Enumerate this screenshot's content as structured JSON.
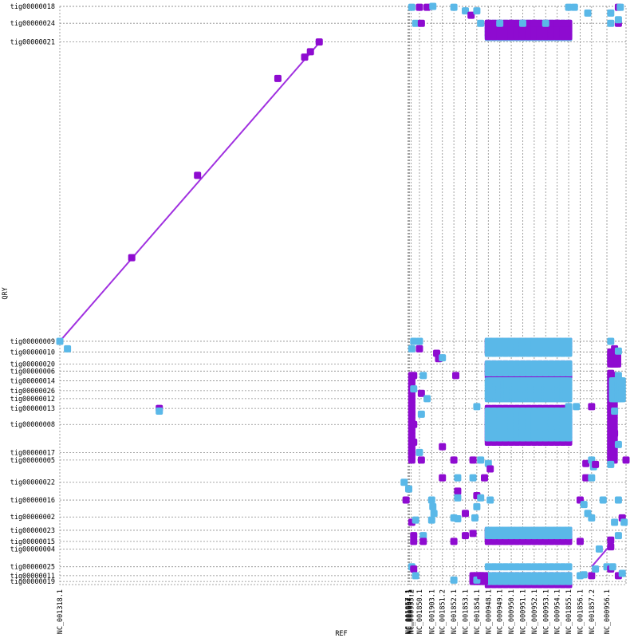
{
  "chart_data": {
    "type": "scatter",
    "title": "",
    "xlabel": "REF",
    "ylabel": "QRY",
    "colors": {
      "forward": "#8e0bd0",
      "reverse": "#5ab8e8",
      "diagonal": "#a030e0"
    },
    "ref_contigs": [
      {
        "name": "NC_001318.1",
        "start": 0,
        "end": 910
      },
      {
        "name": "NC_001857.1",
        "start": 910,
        "end": 912
      },
      {
        "name": "NC_001904.1",
        "start": 912,
        "end": 914
      },
      {
        "name": "NC_000957.1",
        "start": 914,
        "end": 918
      },
      {
        "name": "NC_000955.2",
        "start": 918,
        "end": 940
      },
      {
        "name": "NC_001850.1",
        "start": 940,
        "end": 972
      },
      {
        "name": "NC_001903.1",
        "start": 972,
        "end": 1000
      },
      {
        "name": "NC_001851.2",
        "start": 1000,
        "end": 1030
      },
      {
        "name": "NC_001852.1",
        "start": 1030,
        "end": 1060
      },
      {
        "name": "NC_001853.1",
        "start": 1060,
        "end": 1090
      },
      {
        "name": "NC_001854.1",
        "start": 1090,
        "end": 1120
      },
      {
        "name": "NC_000948.1",
        "start": 1120,
        "end": 1150
      },
      {
        "name": "NC_000949.1",
        "start": 1150,
        "end": 1180
      },
      {
        "name": "NC_000950.1",
        "start": 1180,
        "end": 1210
      },
      {
        "name": "NC_000951.1",
        "start": 1210,
        "end": 1240
      },
      {
        "name": "NC_000952.1",
        "start": 1240,
        "end": 1270
      },
      {
        "name": "NC_000953.1",
        "start": 1270,
        "end": 1300
      },
      {
        "name": "NC_000954.1",
        "start": 1300,
        "end": 1330
      },
      {
        "name": "NC_001855.1",
        "start": 1330,
        "end": 1360
      },
      {
        "name": "NC_001856.1",
        "start": 1360,
        "end": 1390
      },
      {
        "name": "NC_001857.2",
        "start": 1390,
        "end": 1430
      },
      {
        "name": "NC_000956.1",
        "start": 1430,
        "end": 1480
      }
    ],
    "qry_contigs": [
      {
        "name": "tig00000019",
        "start": 0,
        "end": 7
      },
      {
        "name": "tig00000011",
        "start": 7,
        "end": 20
      },
      {
        "name": "tig00000025",
        "start": 20,
        "end": 40
      },
      {
        "name": "tig00000004",
        "start": 40,
        "end": 80
      },
      {
        "name": "tig00000015",
        "start": 80,
        "end": 97
      },
      {
        "name": "tig00000023",
        "start": 97,
        "end": 122
      },
      {
        "name": "tig00000002",
        "start": 122,
        "end": 152
      },
      {
        "name": "tig00000016",
        "start": 152,
        "end": 190
      },
      {
        "name": "tig00000022",
        "start": 190,
        "end": 230
      },
      {
        "name": "tig00000005",
        "start": 230,
        "end": 280
      },
      {
        "name": "tig00000017",
        "start": 280,
        "end": 297
      },
      {
        "name": "tig00000008",
        "start": 297,
        "end": 360
      },
      {
        "name": "tig00000013",
        "start": 360,
        "end": 396
      },
      {
        "name": "tig00000012",
        "start": 396,
        "end": 418
      },
      {
        "name": "tig00000026",
        "start": 418,
        "end": 436
      },
      {
        "name": "tig00000014",
        "start": 436,
        "end": 458
      },
      {
        "name": "tig00000006",
        "start": 458,
        "end": 480
      },
      {
        "name": "tig00000020",
        "start": 480,
        "end": 496
      },
      {
        "name": "tig00000010",
        "start": 496,
        "end": 523
      },
      {
        "name": "tig00000009",
        "start": 523,
        "end": 547
      },
      {
        "name": "tig00000021",
        "start": 547,
        "end": 1220
      },
      {
        "name": "tig00000024",
        "start": 1220,
        "end": 1262
      },
      {
        "name": "tig00000018",
        "start": 1262,
        "end": 1300
      }
    ],
    "diagonal": [
      {
        "x1": 0,
        "y1": 547,
        "x2": 680,
        "y2": 1220,
        "color": "#a030e0"
      },
      {
        "x1": 1390,
        "y1": 40,
        "x2": 1440,
        "y2": 90,
        "color": "#a030e0"
      }
    ],
    "points": [
      {
        "x": 0,
        "y": 547,
        "c": "r"
      },
      {
        "x": 20,
        "y": 530,
        "c": "r"
      },
      {
        "x": 188,
        "y": 735,
        "c": "f"
      },
      {
        "x": 360,
        "y": 920,
        "c": "f"
      },
      {
        "x": 570,
        "y": 1138,
        "c": "f"
      },
      {
        "x": 640,
        "y": 1186,
        "c": "f"
      },
      {
        "x": 655,
        "y": 1198,
        "c": "f"
      },
      {
        "x": 678,
        "y": 1220,
        "c": "f"
      },
      {
        "x": 260,
        "y": 396,
        "c": "f"
      },
      {
        "x": 260,
        "y": 390,
        "c": "r"
      },
      {
        "x": 920,
        "y": 1298,
        "c": "r"
      },
      {
        "x": 940,
        "y": 1298,
        "c": "f"
      },
      {
        "x": 960,
        "y": 1298,
        "c": "f"
      },
      {
        "x": 975,
        "y": 1300,
        "c": "r"
      },
      {
        "x": 1030,
        "y": 1298,
        "c": "r"
      },
      {
        "x": 1060,
        "y": 1290,
        "c": "r"
      },
      {
        "x": 1075,
        "y": 1280,
        "c": "f"
      },
      {
        "x": 1090,
        "y": 1290,
        "c": "r"
      },
      {
        "x": 1330,
        "y": 1298,
        "c": "r"
      },
      {
        "x": 1345,
        "y": 1298,
        "c": "r"
      },
      {
        "x": 1380,
        "y": 1285,
        "c": "r"
      },
      {
        "x": 1440,
        "y": 1285,
        "c": "r"
      },
      {
        "x": 1460,
        "y": 1298,
        "c": "f"
      },
      {
        "x": 1465,
        "y": 1298,
        "c": "r"
      },
      {
        "x": 930,
        "y": 1262,
        "c": "r"
      },
      {
        "x": 945,
        "y": 1262,
        "c": "f"
      },
      {
        "x": 1100,
        "y": 1262,
        "c": "r"
      },
      {
        "x": 1120,
        "y": 1262,
        "c": "f"
      },
      {
        "x": 1150,
        "y": 1262,
        "c": "r"
      },
      {
        "x": 1180,
        "y": 1262,
        "c": "f"
      },
      {
        "x": 1210,
        "y": 1262,
        "c": "r"
      },
      {
        "x": 1240,
        "y": 1262,
        "c": "f"
      },
      {
        "x": 1270,
        "y": 1262,
        "c": "r"
      },
      {
        "x": 1300,
        "y": 1262,
        "c": "f"
      },
      {
        "x": 1440,
        "y": 1262,
        "c": "r"
      },
      {
        "x": 1460,
        "y": 1262,
        "c": "f"
      },
      {
        "x": 1460,
        "y": 1270,
        "c": "r"
      },
      {
        "x": 925,
        "y": 547,
        "c": "r"
      },
      {
        "x": 940,
        "y": 547,
        "c": "r"
      },
      {
        "x": 920,
        "y": 530,
        "c": "r"
      },
      {
        "x": 940,
        "y": 530,
        "c": "f"
      },
      {
        "x": 985,
        "y": 520,
        "c": "f"
      },
      {
        "x": 990,
        "y": 508,
        "c": "f"
      },
      {
        "x": 1000,
        "y": 510,
        "c": "r"
      },
      {
        "x": 1440,
        "y": 547,
        "c": "r"
      },
      {
        "x": 1450,
        "y": 530,
        "c": "f"
      },
      {
        "x": 1460,
        "y": 525,
        "c": "r"
      },
      {
        "x": 925,
        "y": 470,
        "c": "f"
      },
      {
        "x": 950,
        "y": 470,
        "c": "r"
      },
      {
        "x": 1035,
        "y": 470,
        "c": "f"
      },
      {
        "x": 1440,
        "y": 475,
        "c": "f"
      },
      {
        "x": 1460,
        "y": 470,
        "c": "r"
      },
      {
        "x": 925,
        "y": 440,
        "c": "r"
      },
      {
        "x": 945,
        "y": 430,
        "c": "f"
      },
      {
        "x": 960,
        "y": 418,
        "c": "r"
      },
      {
        "x": 1090,
        "y": 400,
        "c": "r"
      },
      {
        "x": 1330,
        "y": 400,
        "c": "r"
      },
      {
        "x": 1350,
        "y": 400,
        "c": "r"
      },
      {
        "x": 1390,
        "y": 400,
        "c": "f"
      },
      {
        "x": 1440,
        "y": 396,
        "c": "f"
      },
      {
        "x": 1450,
        "y": 390,
        "c": "r"
      },
      {
        "x": 920,
        "y": 385,
        "c": "f"
      },
      {
        "x": 945,
        "y": 383,
        "c": "r"
      },
      {
        "x": 925,
        "y": 360,
        "c": "f"
      },
      {
        "x": 925,
        "y": 320,
        "c": "f"
      },
      {
        "x": 940,
        "y": 297,
        "c": "r"
      },
      {
        "x": 945,
        "y": 280,
        "c": "f"
      },
      {
        "x": 1450,
        "y": 340,
        "c": "f"
      },
      {
        "x": 1460,
        "y": 315,
        "c": "r"
      },
      {
        "x": 1000,
        "y": 310,
        "c": "f"
      },
      {
        "x": 1030,
        "y": 280,
        "c": "f"
      },
      {
        "x": 1080,
        "y": 280,
        "c": "f"
      },
      {
        "x": 1100,
        "y": 280,
        "c": "r"
      },
      {
        "x": 1120,
        "y": 272,
        "c": "r"
      },
      {
        "x": 1125,
        "y": 260,
        "c": "f"
      },
      {
        "x": 1375,
        "y": 272,
        "c": "f"
      },
      {
        "x": 1390,
        "y": 280,
        "c": "r"
      },
      {
        "x": 1395,
        "y": 265,
        "c": "r"
      },
      {
        "x": 1400,
        "y": 270,
        "c": "f"
      },
      {
        "x": 1440,
        "y": 270,
        "c": "r"
      },
      {
        "x": 1480,
        "y": 280,
        "c": "f"
      },
      {
        "x": 900,
        "y": 230,
        "c": "r"
      },
      {
        "x": 912,
        "y": 215,
        "c": "r"
      },
      {
        "x": 905,
        "y": 190,
        "c": "f"
      },
      {
        "x": 1000,
        "y": 240,
        "c": "f"
      },
      {
        "x": 1040,
        "y": 240,
        "c": "r"
      },
      {
        "x": 1080,
        "y": 240,
        "c": "r"
      },
      {
        "x": 1110,
        "y": 240,
        "c": "f"
      },
      {
        "x": 1375,
        "y": 240,
        "c": "f"
      },
      {
        "x": 1390,
        "y": 240,
        "c": "r"
      },
      {
        "x": 1040,
        "y": 210,
        "c": "f"
      },
      {
        "x": 1040,
        "y": 195,
        "c": "r"
      },
      {
        "x": 1090,
        "y": 200,
        "c": "f"
      },
      {
        "x": 1100,
        "y": 195,
        "c": "r"
      },
      {
        "x": 1125,
        "y": 190,
        "c": "r"
      },
      {
        "x": 1360,
        "y": 190,
        "c": "f"
      },
      {
        "x": 1370,
        "y": 180,
        "c": "r"
      },
      {
        "x": 1380,
        "y": 160,
        "c": "r"
      },
      {
        "x": 1390,
        "y": 150,
        "c": "r"
      },
      {
        "x": 1420,
        "y": 190,
        "c": "r"
      },
      {
        "x": 1460,
        "y": 190,
        "c": "r"
      },
      {
        "x": 972,
        "y": 190,
        "c": "r"
      },
      {
        "x": 975,
        "y": 175,
        "c": "r"
      },
      {
        "x": 978,
        "y": 160,
        "c": "r"
      },
      {
        "x": 972,
        "y": 145,
        "c": "r"
      },
      {
        "x": 1030,
        "y": 150,
        "c": "r"
      },
      {
        "x": 1040,
        "y": 148,
        "c": "r"
      },
      {
        "x": 1060,
        "y": 160,
        "c": "f"
      },
      {
        "x": 1085,
        "y": 150,
        "c": "r"
      },
      {
        "x": 1090,
        "y": 175,
        "c": "r"
      },
      {
        "x": 920,
        "y": 140,
        "c": "f"
      },
      {
        "x": 930,
        "y": 145,
        "c": "r"
      },
      {
        "x": 1450,
        "y": 140,
        "c": "r"
      },
      {
        "x": 1470,
        "y": 150,
        "c": "f"
      },
      {
        "x": 1475,
        "y": 140,
        "c": "r"
      },
      {
        "x": 925,
        "y": 110,
        "c": "f"
      },
      {
        "x": 950,
        "y": 110,
        "c": "r"
      },
      {
        "x": 925,
        "y": 97,
        "c": "f"
      },
      {
        "x": 950,
        "y": 97,
        "c": "f"
      },
      {
        "x": 1030,
        "y": 97,
        "c": "f"
      },
      {
        "x": 1060,
        "y": 110,
        "c": "f"
      },
      {
        "x": 1080,
        "y": 115,
        "c": "f"
      },
      {
        "x": 1360,
        "y": 97,
        "c": "f"
      },
      {
        "x": 1440,
        "y": 100,
        "c": "f"
      },
      {
        "x": 1460,
        "y": 110,
        "c": "r"
      },
      {
        "x": 1410,
        "y": 80,
        "c": "r"
      },
      {
        "x": 1440,
        "y": 85,
        "c": "f"
      },
      {
        "x": 920,
        "y": 40,
        "c": "r"
      },
      {
        "x": 925,
        "y": 35,
        "c": "f"
      },
      {
        "x": 1430,
        "y": 40,
        "c": "r"
      },
      {
        "x": 1440,
        "y": 35,
        "c": "f"
      },
      {
        "x": 1445,
        "y": 40,
        "c": "r"
      },
      {
        "x": 930,
        "y": 20,
        "c": "r"
      },
      {
        "x": 1030,
        "y": 10,
        "c": "r"
      },
      {
        "x": 1090,
        "y": 10,
        "c": "r"
      },
      {
        "x": 1100,
        "y": 20,
        "c": "f"
      },
      {
        "x": 1360,
        "y": 20,
        "c": "r"
      },
      {
        "x": 1370,
        "y": 22,
        "c": "r"
      },
      {
        "x": 1390,
        "y": 20,
        "c": "f"
      },
      {
        "x": 1400,
        "y": 35,
        "c": "r"
      },
      {
        "x": 1460,
        "y": 20,
        "c": "f"
      },
      {
        "x": 1470,
        "y": 25,
        "c": "r"
      }
    ],
    "blocks": [
      {
        "x1": 1120,
        "x2": 1330,
        "y1": 1230,
        "y2": 1262,
        "c": "r",
        "step": 30
      },
      {
        "x1": 1120,
        "x2": 1330,
        "y1": 1232,
        "y2": 1262,
        "c": "f",
        "step": 30
      },
      {
        "x1": 1120,
        "x2": 1330,
        "y1": 523,
        "y2": 547,
        "c": "f",
        "step": 30
      },
      {
        "x1": 1120,
        "x2": 1330,
        "y1": 520,
        "y2": 547,
        "c": "r",
        "step": 30
      },
      {
        "x1": 1120,
        "x2": 1330,
        "y1": 470,
        "y2": 496,
        "c": "f",
        "step": 30
      },
      {
        "x1": 1120,
        "x2": 1330,
        "y1": 476,
        "y2": 496,
        "c": "r",
        "step": 30
      },
      {
        "x1": 1120,
        "x2": 1330,
        "y1": 418,
        "y2": 458,
        "c": "r",
        "step": 14
      },
      {
        "x1": 1120,
        "x2": 1330,
        "y1": 320,
        "y2": 396,
        "c": "f",
        "step": 30
      },
      {
        "x1": 1120,
        "x2": 1330,
        "y1": 330,
        "y2": 390,
        "c": "r",
        "step": 30
      },
      {
        "x1": 1120,
        "x2": 1330,
        "y1": 97,
        "y2": 122,
        "c": "f",
        "step": 30
      },
      {
        "x1": 1120,
        "x2": 1330,
        "y1": 110,
        "y2": 122,
        "c": "r",
        "step": 30
      },
      {
        "x1": 1120,
        "x2": 1330,
        "y1": 0,
        "y2": 20,
        "c": "f",
        "step": 30
      },
      {
        "x1": 1120,
        "x2": 1330,
        "y1": 7,
        "y2": 20,
        "c": "r",
        "step": 30
      },
      {
        "x1": 1120,
        "x2": 1330,
        "y1": 40,
        "y2": 40,
        "c": "r",
        "step": 30
      },
      {
        "x1": 920,
        "x2": 925,
        "y1": 280,
        "y2": 470,
        "c": "f",
        "step": 16
      },
      {
        "x1": 1440,
        "x2": 1450,
        "y1": 280,
        "y2": 470,
        "c": "f",
        "step": 18
      },
      {
        "x1": 1445,
        "x2": 1470,
        "y1": 418,
        "y2": 458,
        "c": "r",
        "step": 10
      },
      {
        "x1": 1440,
        "x2": 1460,
        "y1": 496,
        "y2": 523,
        "c": "f",
        "step": 12
      },
      {
        "x1": 1080,
        "x2": 1110,
        "y1": 7,
        "y2": 20,
        "c": "f",
        "step": 15
      }
    ]
  }
}
